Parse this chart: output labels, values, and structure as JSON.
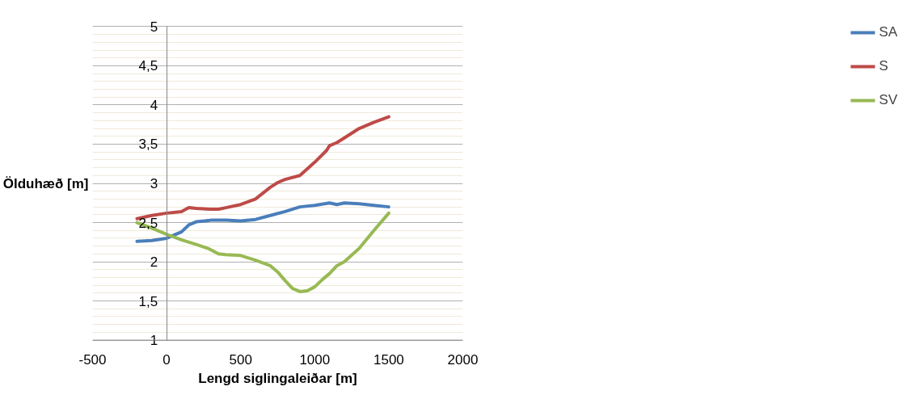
{
  "chart_data": {
    "type": "line",
    "xlabel": "Lengd siglingaleiðar [m]",
    "ylabel": "Ölduhæð [m]",
    "xlim": [
      -500,
      2000
    ],
    "xticks": [
      -500,
      0,
      500,
      1000,
      1500,
      2000
    ],
    "ylim": [
      1,
      5
    ],
    "yticks": [
      1,
      {
        "value": 1.5,
        "label": "1,5"
      },
      2,
      {
        "value": 2.5,
        "label": "2,5"
      },
      3,
      {
        "value": 3.5,
        "label": "3,5"
      },
      4,
      {
        "value": 4.5,
        "label": "4,5"
      },
      5
    ],
    "grid": "y",
    "legend": "right",
    "line_style": "solid",
    "x": [
      -200,
      -100,
      0,
      100,
      150,
      200,
      300,
      400,
      500,
      600,
      700,
      800,
      900,
      1000,
      1100,
      1150,
      1200,
      1300,
      1400,
      1500
    ],
    "series": [
      {
        "name": "SA",
        "color": "#4a7ebb",
        "values": [
          2.26,
          2.27,
          2.3,
          2.38,
          2.47,
          2.51,
          2.53,
          2.53,
          2.52,
          2.54,
          2.59,
          2.64,
          2.7,
          2.72,
          2.75,
          2.73,
          2.75,
          2.74,
          2.72,
          2.7
        ]
      },
      {
        "name": "S",
        "color": "#be4b48",
        "x": [
          -200,
          -100,
          0,
          100,
          150,
          200,
          300,
          350,
          400,
          500,
          600,
          700,
          750,
          800,
          900,
          1000,
          1080,
          1100,
          1150,
          1200,
          1300,
          1400,
          1500
        ],
        "values": [
          2.55,
          2.59,
          2.62,
          2.64,
          2.69,
          2.68,
          2.67,
          2.67,
          2.69,
          2.73,
          2.8,
          2.95,
          3.01,
          3.05,
          3.1,
          3.27,
          3.42,
          3.48,
          3.52,
          3.58,
          3.7,
          3.78,
          3.85
        ]
      },
      {
        "name": "SV",
        "color": "#98b954",
        "x": [
          -200,
          -100,
          0,
          100,
          200,
          280,
          350,
          400,
          500,
          600,
          700,
          750,
          800,
          850,
          900,
          950,
          1000,
          1050,
          1100,
          1150,
          1200,
          1300,
          1400,
          1500
        ],
        "values": [
          2.5,
          2.43,
          2.35,
          2.28,
          2.22,
          2.17,
          2.1,
          2.09,
          2.08,
          2.02,
          1.95,
          1.87,
          1.76,
          1.66,
          1.62,
          1.63,
          1.68,
          1.77,
          1.85,
          1.95,
          2.0,
          2.17,
          2.4,
          2.62
        ]
      }
    ]
  }
}
